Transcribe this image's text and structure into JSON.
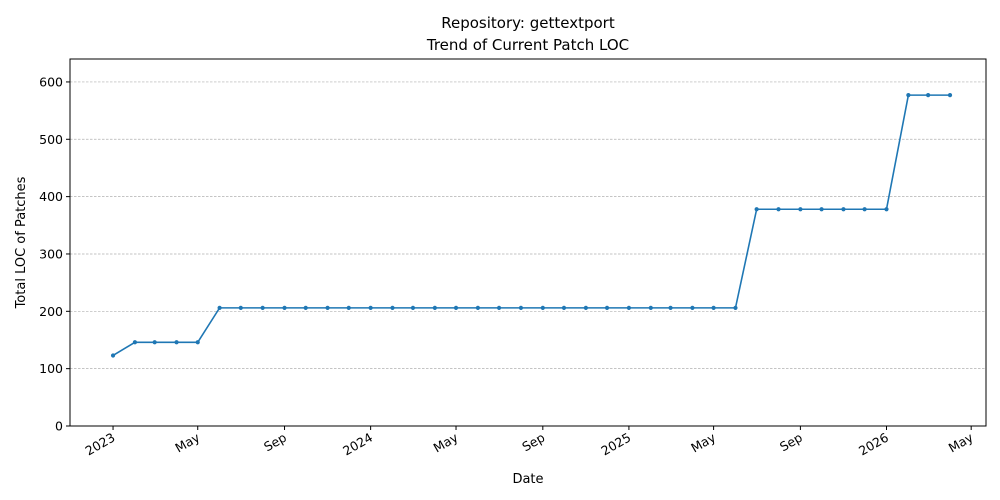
{
  "chart_data": {
    "type": "line",
    "title": "Repository: gettextport",
    "subtitle": "Trend of Current Patch LOC",
    "xlabel": "Date",
    "ylabel": "Total LOC of Patches",
    "xlim": [
      "2022-11-01",
      "2026-05-22"
    ],
    "ylim": [
      0,
      640
    ],
    "yticks": [
      0,
      100,
      200,
      300,
      400,
      500,
      600
    ],
    "xticks": [
      {
        "date": "2023-01-01",
        "label": "2023"
      },
      {
        "date": "2023-05-01",
        "label": "May"
      },
      {
        "date": "2023-09-01",
        "label": "Sep"
      },
      {
        "date": "2024-01-01",
        "label": "2024"
      },
      {
        "date": "2024-05-01",
        "label": "May"
      },
      {
        "date": "2024-09-01",
        "label": "Sep"
      },
      {
        "date": "2025-01-01",
        "label": "2025"
      },
      {
        "date": "2025-05-01",
        "label": "May"
      },
      {
        "date": "2025-09-01",
        "label": "Sep"
      },
      {
        "date": "2026-01-01",
        "label": "2026"
      },
      {
        "date": "2026-05-01",
        "label": "May"
      }
    ],
    "grid": "y",
    "color": "#1f77b4",
    "series": [
      {
        "x": [
          "2023-01-01",
          "2023-02-01",
          "2023-03-01",
          "2023-04-01",
          "2023-05-01",
          "2023-06-01",
          "2023-07-01",
          "2023-08-01",
          "2023-09-01",
          "2023-10-01",
          "2023-11-01",
          "2023-12-01",
          "2024-01-01",
          "2024-02-01",
          "2024-03-01",
          "2024-04-01",
          "2024-05-01",
          "2024-06-01",
          "2024-07-01",
          "2024-08-01",
          "2024-09-01",
          "2024-10-01",
          "2024-11-01",
          "2024-12-01",
          "2025-01-01",
          "2025-02-01",
          "2025-03-01",
          "2025-04-01",
          "2025-05-01",
          "2025-06-01",
          "2025-07-01",
          "2025-08-01",
          "2025-09-01",
          "2025-10-01",
          "2025-11-01",
          "2025-12-01",
          "2026-01-01",
          "2026-02-01",
          "2026-03-01",
          "2026-04-01"
        ],
        "y": [
          123,
          146,
          146,
          146,
          146,
          206,
          206,
          206,
          206,
          206,
          206,
          206,
          206,
          206,
          206,
          206,
          206,
          206,
          206,
          206,
          206,
          206,
          206,
          206,
          206,
          206,
          206,
          206,
          206,
          206,
          378,
          378,
          378,
          378,
          378,
          378,
          378,
          577,
          577,
          577
        ]
      }
    ]
  }
}
